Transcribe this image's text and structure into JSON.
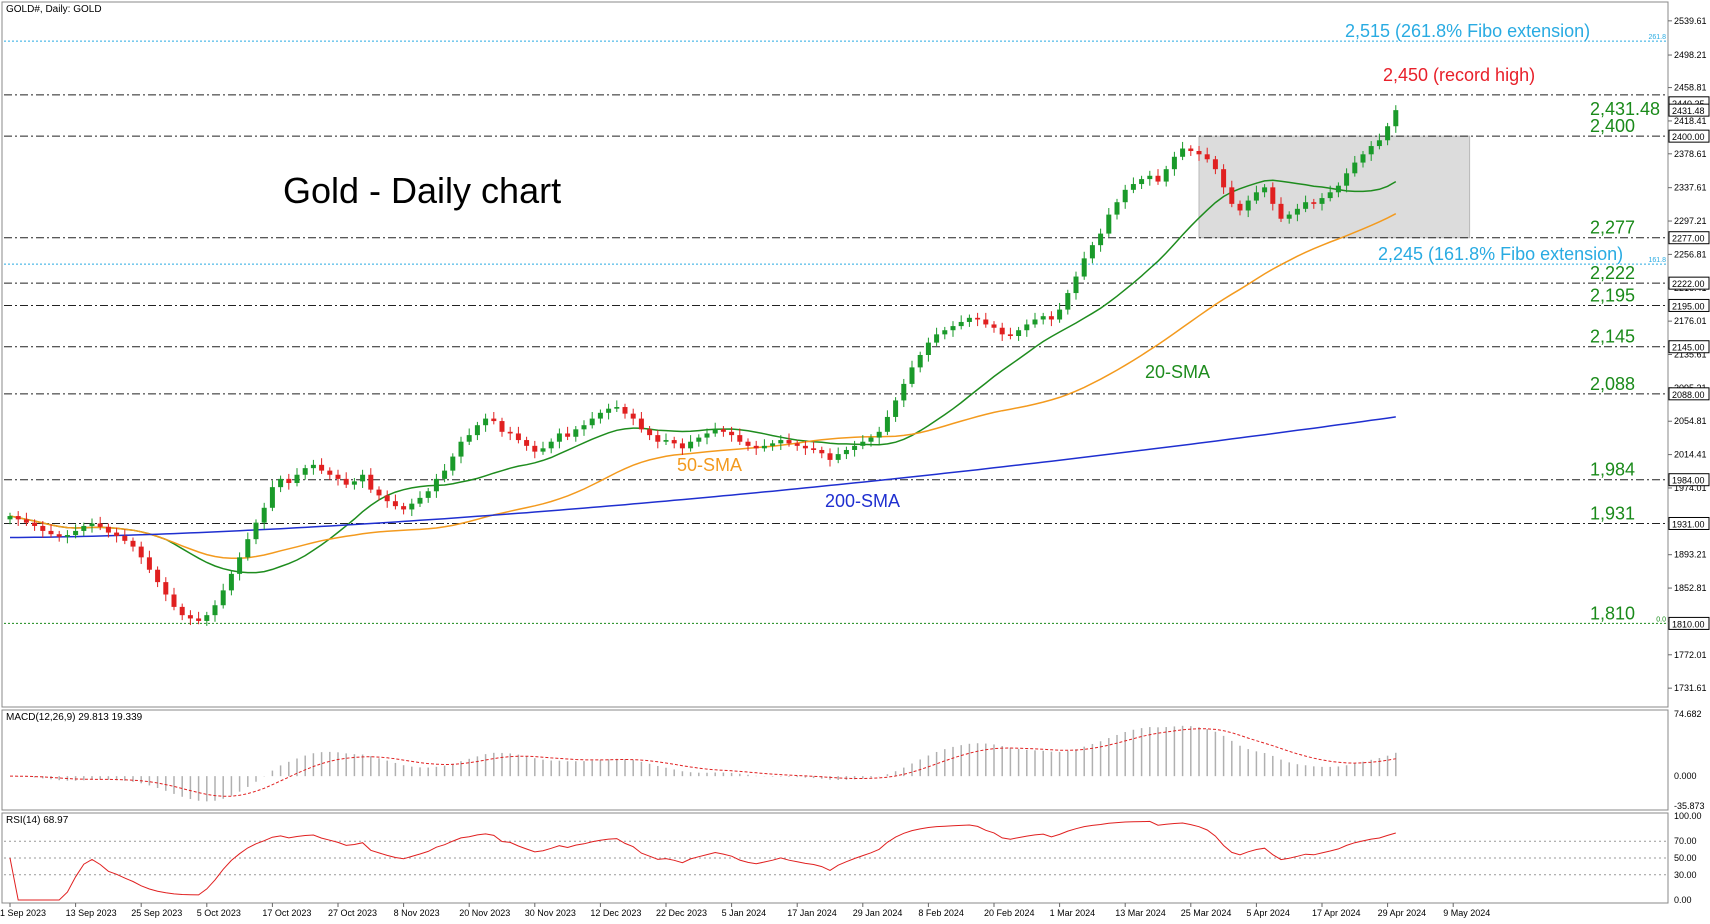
{
  "header": {
    "symbol_label": "GOLD#, Daily:  GOLD"
  },
  "chart_title": "Gold - Daily chart",
  "chart_data": {
    "type": "candlestick",
    "title": "Gold - Daily chart",
    "price_axis": {
      "ylim": [
        1710,
        2560
      ],
      "ticks": [
        "2539.61",
        "2498.21",
        "2458.81",
        "2418.41",
        "2378.61",
        "2337.61",
        "2297.21",
        "2256.81",
        "2216.41",
        "2176.01",
        "2135.61",
        "2095.21",
        "2054.81",
        "2014.41",
        "1974.01",
        "1933.61",
        "1893.21",
        "1852.81",
        "1812.41",
        "1772.01",
        "1731.61"
      ],
      "tick_values": [
        2539.61,
        2498.21,
        2458.81,
        2418.41,
        2378.61,
        2337.61,
        2297.21,
        2256.81,
        2216.41,
        2176.01,
        2135.61,
        2095.21,
        2054.81,
        2014.41,
        1974.01,
        1933.61,
        1893.21,
        1852.81,
        1812.41,
        1772.01,
        1731.61
      ]
    },
    "x_axis": {
      "ticks": [
        "1 Sep 2023",
        "13 Sep 2023",
        "25 Sep 2023",
        "5 Oct 2023",
        "17 Oct 2023",
        "27 Oct 2023",
        "8 Nov 2023",
        "20 Nov 2023",
        "30 Nov 2023",
        "12 Dec 2023",
        "22 Dec 2023",
        "5 Jan 2024",
        "17 Jan 2024",
        "29 Jan 2024",
        "8 Feb 2024",
        "20 Feb 2024",
        "1 Mar 2024",
        "13 Mar 2024",
        "25 Mar 2024",
        "5 Apr 2024",
        "17 Apr 2024",
        "29 Apr 2024",
        "9 May 2024"
      ],
      "tick_index": [
        0,
        8,
        16,
        24,
        32,
        40,
        48,
        56,
        64,
        72,
        80,
        88,
        96,
        104,
        112,
        120,
        128,
        136,
        144,
        152,
        160,
        168,
        176
      ]
    },
    "closes": [
      1940,
      1936,
      1932,
      1928,
      1922,
      1918,
      1915,
      1917,
      1922,
      1928,
      1931,
      1927,
      1920,
      1916,
      1910,
      1903,
      1890,
      1875,
      1860,
      1845,
      1830,
      1820,
      1816,
      1813,
      1820,
      1832,
      1850,
      1870,
      1890,
      1912,
      1932,
      1950,
      1975,
      1985,
      1980,
      1990,
      1998,
      2002,
      1995,
      1990,
      1985,
      1978,
      1982,
      1990,
      1972,
      1965,
      1958,
      1952,
      1948,
      1955,
      1962,
      1970,
      1985,
      1995,
      2012,
      2030,
      2038,
      2050,
      2058,
      2055,
      2042,
      2040,
      2032,
      2025,
      2018,
      2022,
      2030,
      2040,
      2036,
      2045,
      2050,
      2058,
      2065,
      2070,
      2072,
      2064,
      2058,
      2045,
      2038,
      2030,
      2032,
      2028,
      2022,
      2030,
      2035,
      2040,
      2045,
      2042,
      2038,
      2030,
      2025,
      2022,
      2025,
      2028,
      2032,
      2028,
      2025,
      2022,
      2020,
      2016,
      2008,
      2015,
      2020,
      2025,
      2030,
      2035,
      2042,
      2060,
      2080,
      2100,
      2120,
      2135,
      2150,
      2160,
      2165,
      2170,
      2175,
      2180,
      2178,
      2172,
      2168,
      2160,
      2158,
      2165,
      2172,
      2178,
      2182,
      2178,
      2190,
      2210,
      2230,
      2252,
      2268,
      2282,
      2305,
      2320,
      2335,
      2342,
      2348,
      2352,
      2345,
      2360,
      2375,
      2385,
      2382,
      2378,
      2372,
      2360,
      2338,
      2318,
      2310,
      2322,
      2332,
      2338,
      2318,
      2300,
      2305,
      2312,
      2320,
      2318,
      2325,
      2332,
      2340,
      2355,
      2368,
      2378,
      2388,
      2395,
      2412,
      2431.48
    ],
    "levels": [
      {
        "label": "2,515 (261.8% Fibo extension)",
        "value": 2515,
        "color": "#29abe2",
        "style": "dotted",
        "tag": "261.8"
      },
      {
        "label": "2,450 (record high)",
        "value": 2450,
        "color": "#e8202a",
        "style": "dashdot"
      },
      {
        "label": "2,431.48",
        "value": 2431.48,
        "color": "#1a8a1a",
        "style": "none"
      },
      {
        "label": "2,400",
        "value": 2400,
        "color": "#1a8a1a",
        "style": "dashdot"
      },
      {
        "label": "2,277",
        "value": 2277,
        "color": "#1a8a1a",
        "style": "dashdot"
      },
      {
        "label": "2,245 (161.8% Fibo extension)",
        "value": 2245,
        "color": "#29abe2",
        "style": "dotted",
        "tag": "161.8"
      },
      {
        "label": "2,222",
        "value": 2222,
        "color": "#1a8a1a",
        "style": "dashdot"
      },
      {
        "label": "2,195",
        "value": 2195,
        "color": "#1a8a1a",
        "style": "dashdot"
      },
      {
        "label": "2,145",
        "value": 2145,
        "color": "#1a8a1a",
        "style": "dashdot"
      },
      {
        "label": "2,088",
        "value": 2088,
        "color": "#1a8a1a",
        "style": "dashdot"
      },
      {
        "label": "1,984",
        "value": 1984,
        "color": "#1a8a1a",
        "style": "dashdot"
      },
      {
        "label": "1,931",
        "value": 1931,
        "color": "#1a8a1a",
        "style": "dashdot"
      },
      {
        "label": "1,810",
        "value": 1810,
        "color": "#1a8a1a",
        "style": "dotted",
        "tag": "0.0"
      }
    ],
    "axis_boxes": [
      "2440.35",
      "2431.48",
      "2400.00",
      "2277.00",
      "2222.00",
      "2195.00",
      "2145.00",
      "2088.00",
      "1984.00",
      "1931.00",
      "1810.00"
    ],
    "axis_box_values": [
      2440.35,
      2431.48,
      2400,
      2277,
      2222,
      2195,
      2145,
      2088,
      1984,
      1931,
      1810
    ],
    "sma_labels": {
      "sma20": "20-SMA",
      "sma50": "50-SMA",
      "sma200": "200-SMA"
    },
    "sma_colors": {
      "sma20": "#1e8c1e",
      "sma50": "#f39a1e",
      "sma200": "#1f2fd0"
    },
    "sma200_start": 1914,
    "sma200_end": 2060,
    "range_box": {
      "from_index": 145,
      "to_index": 178,
      "low": 2277,
      "high": 2400
    },
    "colors": {
      "up": "#1a9a2a",
      "down": "#e02020",
      "fibo": "#29abe2"
    },
    "macd": {
      "label": "MACD(12,26,9) 29.813 19.339",
      "ticks": [
        "74.682",
        "0.000",
        "-35.873"
      ],
      "tick_values": [
        74.682,
        0,
        -35.873
      ]
    },
    "rsi": {
      "label": "RSI(14) 68.97",
      "ticks": [
        "100.00",
        "70.00",
        "50.00",
        "30.00",
        "0.00"
      ],
      "tick_values": [
        100,
        70,
        50,
        30,
        0
      ]
    }
  }
}
